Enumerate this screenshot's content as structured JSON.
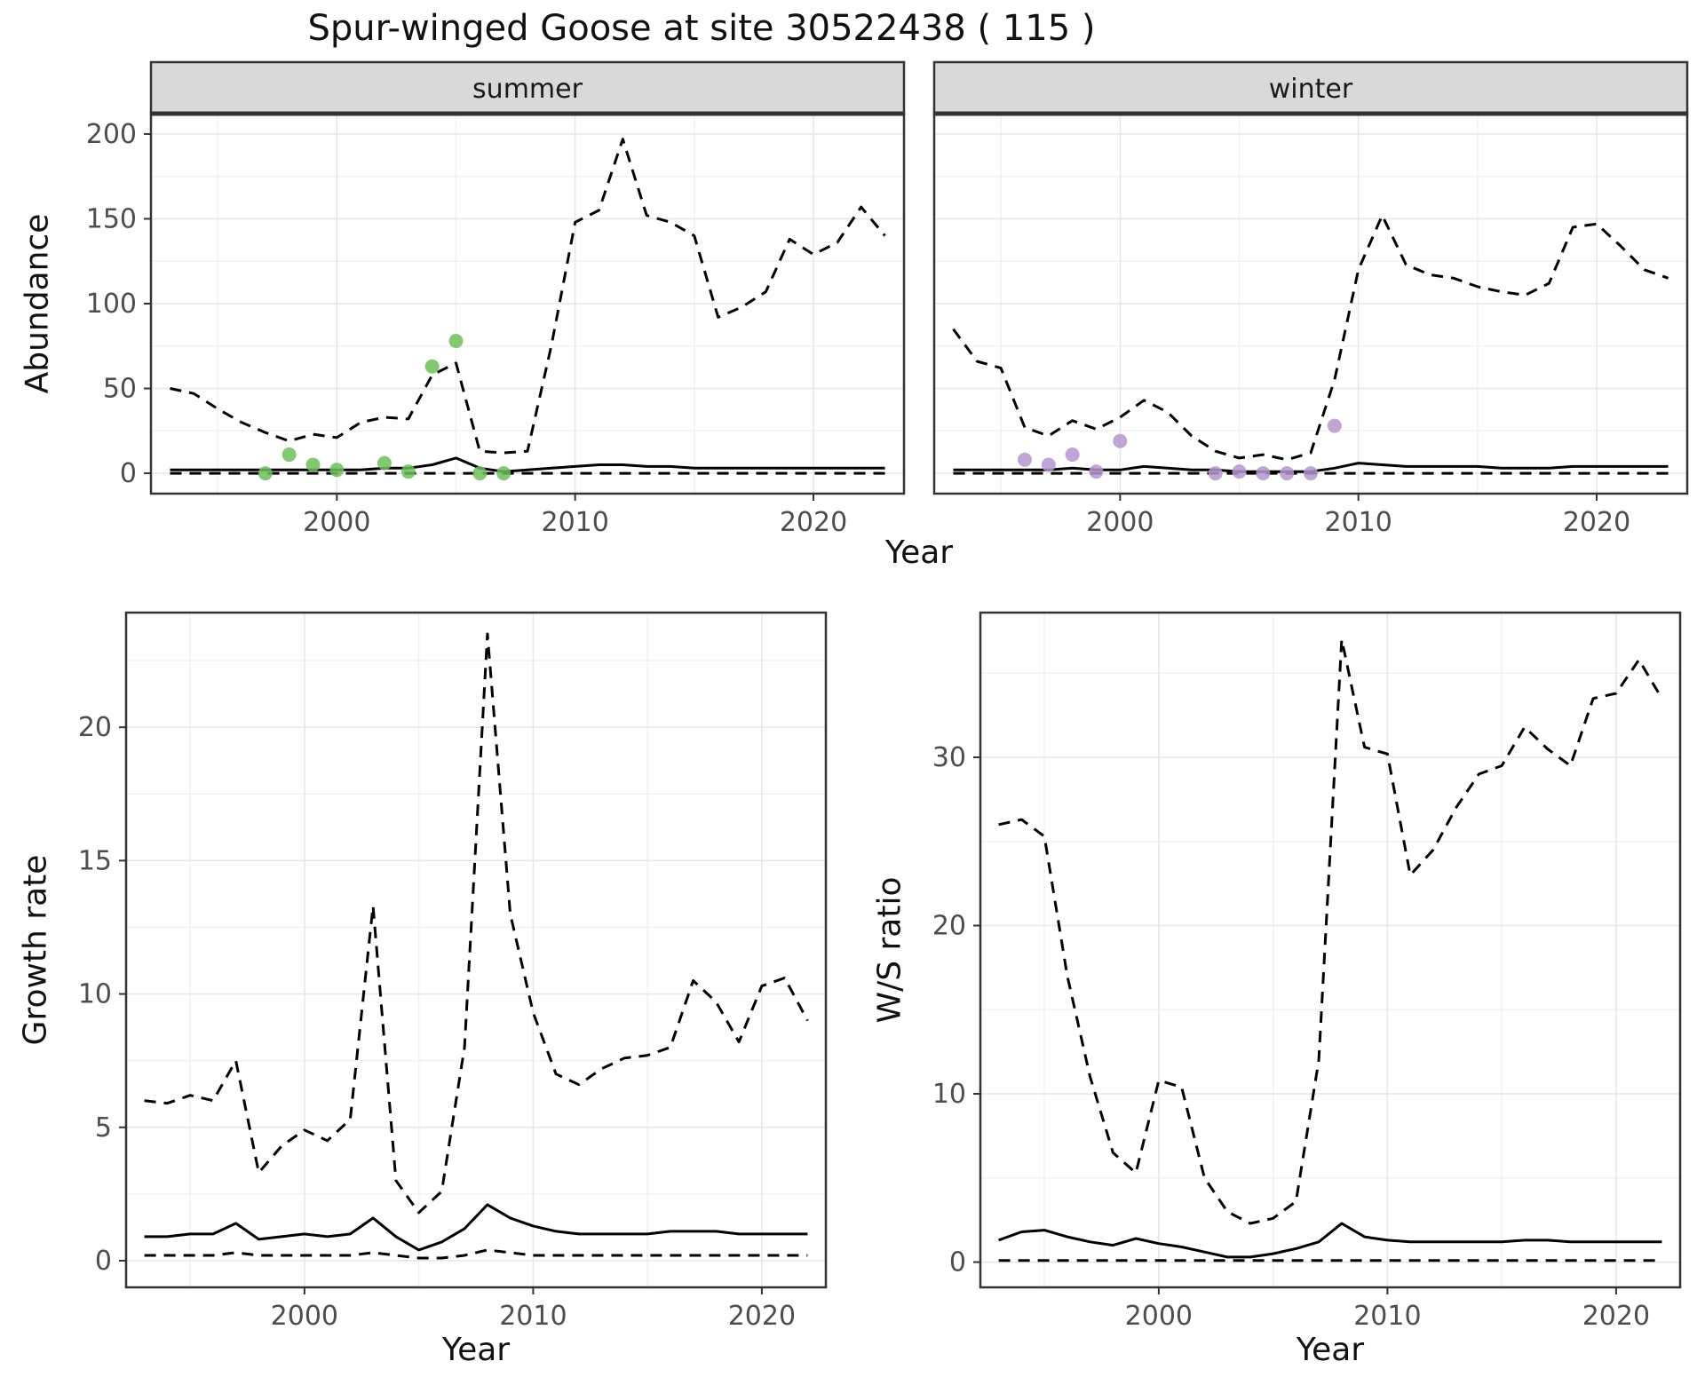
{
  "title": "Spur-winged Goose at site 30522438 ( 115 )",
  "axes": {
    "abundance_ylab": "Abundance",
    "growth_ylab": "Growth rate",
    "ws_ylab": "W/S ratio",
    "xlab_top": "Year",
    "xlab_growth": "Year",
    "xlab_ws": "Year"
  },
  "styles": {
    "line_color": "#000000",
    "panel_border": "#333333",
    "strip_bg": "#d9d9d9",
    "grid_major": "#e6e6e6",
    "grid_minor": "#f2f2f2",
    "tick_label_color": "#4d4d4d",
    "summer_point_color": "#6dbf5b",
    "winter_point_color": "#b497ce"
  },
  "chart_data": [
    {
      "name": "abundance-summer",
      "type": "line",
      "facet_label": "summer",
      "xlabel": "Year",
      "ylabel": "Abundance",
      "xlim": [
        1992.2,
        2023.8
      ],
      "ylim": [
        -12,
        212
      ],
      "xticks": [
        2000,
        2010,
        2020
      ],
      "xminor": [
        1995,
        2005,
        2015
      ],
      "yticks": [
        0,
        50,
        100,
        150,
        200
      ],
      "yminor": [
        25,
        75,
        125,
        175
      ],
      "show_y_labels": true,
      "x": [
        1993,
        1994,
        1995,
        1996,
        1997,
        1998,
        1999,
        2000,
        2001,
        2002,
        2003,
        2004,
        2005,
        2006,
        2007,
        2008,
        2009,
        2010,
        2011,
        2012,
        2013,
        2014,
        2015,
        2016,
        2017,
        2018,
        2019,
        2020,
        2021,
        2022,
        2023
      ],
      "series": [
        {
          "name": "upper-95ci",
          "linetype": "dashed",
          "values": [
            50,
            47,
            38,
            30,
            24,
            19,
            23,
            21,
            30,
            33,
            32,
            58,
            65,
            13,
            12,
            13,
            75,
            148,
            155,
            197,
            152,
            148,
            140,
            92,
            98,
            107,
            138,
            129,
            136,
            157,
            140
          ]
        },
        {
          "name": "median",
          "linetype": "solid",
          "values": [
            2,
            2,
            2,
            2,
            2,
            2,
            2,
            2,
            2,
            3,
            3,
            5,
            9,
            3,
            1,
            2,
            3,
            4,
            5,
            5,
            4,
            4,
            3,
            3,
            3,
            3,
            3,
            3,
            3,
            3,
            3
          ]
        },
        {
          "name": "lower-95ci",
          "linetype": "dashed",
          "values": [
            0,
            0,
            0,
            0,
            0,
            0,
            0,
            0,
            0,
            0,
            0,
            0,
            0,
            0,
            0,
            0,
            0,
            0,
            0,
            0,
            0,
            0,
            0,
            0,
            0,
            0,
            0,
            0,
            0,
            0,
            0
          ]
        }
      ],
      "points": {
        "name": "observed-summer-counts",
        "color": "#6dbf5b",
        "xy": [
          [
            1997,
            0
          ],
          [
            1998,
            11
          ],
          [
            1999,
            5
          ],
          [
            2000,
            2
          ],
          [
            2002,
            6
          ],
          [
            2003,
            1
          ],
          [
            2004,
            63
          ],
          [
            2005,
            78
          ],
          [
            2006,
            0
          ],
          [
            2007,
            0
          ]
        ]
      }
    },
    {
      "name": "abundance-winter",
      "type": "line",
      "facet_label": "winter",
      "xlabel": "Year",
      "ylabel": "Abundance",
      "xlim": [
        1992.2,
        2023.8
      ],
      "ylim": [
        -12,
        212
      ],
      "xticks": [
        2000,
        2010,
        2020
      ],
      "xminor": [
        1995,
        2005,
        2015
      ],
      "yticks": [
        0,
        50,
        100,
        150,
        200
      ],
      "yminor": [
        25,
        75,
        125,
        175
      ],
      "show_y_labels": false,
      "x": [
        1993,
        1994,
        1995,
        1996,
        1997,
        1998,
        1999,
        2000,
        2001,
        2002,
        2003,
        2004,
        2005,
        2006,
        2007,
        2008,
        2009,
        2010,
        2011,
        2012,
        2013,
        2014,
        2015,
        2016,
        2017,
        2018,
        2019,
        2020,
        2021,
        2022,
        2023
      ],
      "series": [
        {
          "name": "upper-95ci",
          "linetype": "dashed",
          "values": [
            85,
            66,
            62,
            27,
            22,
            31,
            26,
            33,
            43,
            36,
            22,
            13,
            9,
            11,
            8,
            12,
            55,
            120,
            152,
            123,
            117,
            115,
            110,
            107,
            105,
            112,
            145,
            147,
            134,
            120,
            115
          ]
        },
        {
          "name": "median",
          "linetype": "solid",
          "values": [
            2,
            2,
            2,
            2,
            2,
            3,
            2,
            2,
            4,
            3,
            2,
            2,
            1,
            1,
            1,
            1,
            3,
            6,
            5,
            4,
            4,
            4,
            4,
            3,
            3,
            3,
            4,
            4,
            4,
            4,
            4
          ]
        },
        {
          "name": "lower-95ci",
          "linetype": "dashed",
          "values": [
            0,
            0,
            0,
            0,
            0,
            0,
            0,
            0,
            0,
            0,
            0,
            0,
            0,
            0,
            0,
            0,
            0,
            0,
            0,
            0,
            0,
            0,
            0,
            0,
            0,
            0,
            0,
            0,
            0,
            0,
            0
          ]
        }
      ],
      "points": {
        "name": "observed-winter-counts",
        "color": "#b497ce",
        "xy": [
          [
            1996,
            8
          ],
          [
            1997,
            5
          ],
          [
            1998,
            11
          ],
          [
            1999,
            1
          ],
          [
            2000,
            19
          ],
          [
            2004,
            0
          ],
          [
            2005,
            1
          ],
          [
            2006,
            0
          ],
          [
            2007,
            0
          ],
          [
            2008,
            0
          ],
          [
            2009,
            28
          ]
        ]
      }
    },
    {
      "name": "growth-rate",
      "type": "line",
      "facet_label": null,
      "xlabel": "Year",
      "ylabel": "Growth rate",
      "xlim": [
        1992.2,
        2022.8
      ],
      "ylim": [
        -1,
        24.3
      ],
      "xticks": [
        2000,
        2010,
        2020
      ],
      "xminor": [
        1995,
        2005,
        2015
      ],
      "yticks": [
        0,
        5,
        10,
        15,
        20
      ],
      "yminor": [
        2.5,
        7.5,
        12.5,
        17.5,
        22.5
      ],
      "show_y_labels": true,
      "x": [
        1993,
        1994,
        1995,
        1996,
        1997,
        1998,
        1999,
        2000,
        2001,
        2002,
        2003,
        2004,
        2005,
        2006,
        2007,
        2008,
        2009,
        2010,
        2011,
        2012,
        2013,
        2014,
        2015,
        2016,
        2017,
        2018,
        2019,
        2020,
        2021,
        2022
      ],
      "series": [
        {
          "name": "upper-95ci",
          "linetype": "dashed",
          "values": [
            6,
            5.9,
            6.2,
            6,
            7.5,
            3.3,
            4.3,
            4.9,
            4.5,
            5.3,
            13.3,
            3,
            1.8,
            2.6,
            8,
            23.5,
            13,
            9.3,
            7,
            6.6,
            7.2,
            7.6,
            7.7,
            8,
            10.5,
            9.7,
            8.2,
            10.3,
            10.6,
            9
          ]
        },
        {
          "name": "median",
          "linetype": "solid",
          "values": [
            0.9,
            0.9,
            1,
            1,
            1.4,
            0.8,
            0.9,
            1,
            0.9,
            1,
            1.6,
            0.9,
            0.4,
            0.7,
            1.2,
            2.1,
            1.6,
            1.3,
            1.1,
            1,
            1,
            1,
            1,
            1.1,
            1.1,
            1.1,
            1,
            1,
            1,
            1
          ]
        },
        {
          "name": "lower-95ci",
          "linetype": "dashed",
          "values": [
            0.2,
            0.2,
            0.2,
            0.2,
            0.3,
            0.2,
            0.2,
            0.2,
            0.2,
            0.2,
            0.3,
            0.2,
            0.1,
            0.1,
            0.2,
            0.4,
            0.3,
            0.2,
            0.2,
            0.2,
            0.2,
            0.2,
            0.2,
            0.2,
            0.2,
            0.2,
            0.2,
            0.2,
            0.2,
            0.2
          ]
        }
      ],
      "points": null
    },
    {
      "name": "ws-ratio",
      "type": "line",
      "facet_label": null,
      "xlabel": "Year",
      "ylabel": "W/S ratio",
      "xlim": [
        1992.2,
        2022.8
      ],
      "ylim": [
        -1.5,
        38.6
      ],
      "xticks": [
        2000,
        2010,
        2020
      ],
      "xminor": [
        1995,
        2005,
        2015
      ],
      "yticks": [
        0,
        10,
        20,
        30
      ],
      "yminor": [
        5,
        15,
        25,
        35
      ],
      "show_y_labels": true,
      "x": [
        1993,
        1994,
        1995,
        1996,
        1997,
        1998,
        1999,
        2000,
        2001,
        2002,
        2003,
        2004,
        2005,
        2006,
        2007,
        2008,
        2009,
        2010,
        2011,
        2012,
        2013,
        2014,
        2015,
        2016,
        2017,
        2018,
        2019,
        2020,
        2021,
        2022
      ],
      "series": [
        {
          "name": "upper-95ci",
          "linetype": "dashed",
          "values": [
            26,
            26.3,
            25.3,
            17,
            11,
            6.5,
            5.3,
            10.8,
            10.4,
            5,
            3,
            2.3,
            2.6,
            3.6,
            12,
            37,
            30.6,
            30.2,
            23,
            24.5,
            27,
            29,
            29.5,
            31.8,
            30.5,
            29.5,
            33.5,
            33.8,
            35.8,
            33.5
          ]
        },
        {
          "name": "median",
          "linetype": "solid",
          "values": [
            1.3,
            1.8,
            1.9,
            1.5,
            1.2,
            1,
            1.4,
            1.1,
            0.9,
            0.6,
            0.3,
            0.3,
            0.5,
            0.8,
            1.2,
            2.3,
            1.5,
            1.3,
            1.2,
            1.2,
            1.2,
            1.2,
            1.2,
            1.3,
            1.3,
            1.2,
            1.2,
            1.2,
            1.2,
            1.2
          ]
        },
        {
          "name": "lower-95ci",
          "linetype": "dashed",
          "values": [
            0.1,
            0.1,
            0.1,
            0.1,
            0.1,
            0.1,
            0.1,
            0.1,
            0.1,
            0.1,
            0.1,
            0.1,
            0.1,
            0.1,
            0.1,
            0.1,
            0.1,
            0.1,
            0.1,
            0.1,
            0.1,
            0.1,
            0.1,
            0.1,
            0.1,
            0.1,
            0.1,
            0.1,
            0.1,
            0.1
          ]
        }
      ],
      "points": null
    }
  ]
}
